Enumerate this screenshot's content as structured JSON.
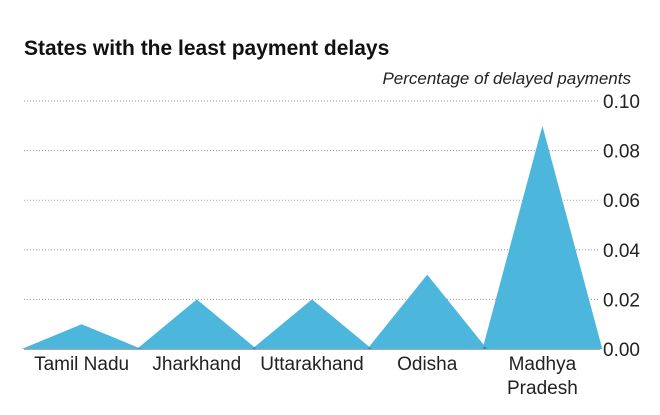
{
  "chart_data": {
    "type": "area",
    "title": "States with the least payment delays",
    "subtitle": "Percentage of delayed payments",
    "categories": [
      "Tamil Nadu",
      "Jharkhand",
      "Uttarakhand",
      "Odisha",
      "Madhya Pradesh"
    ],
    "category_lines": [
      [
        "Tamil Nadu"
      ],
      [
        "Jharkhand"
      ],
      [
        "Uttarakhand"
      ],
      [
        "Odisha"
      ],
      [
        "Madhya",
        "Pradesh"
      ]
    ],
    "values": [
      0.01,
      0.02,
      0.02,
      0.03,
      0.09
    ],
    "ylim": [
      0,
      0.1
    ],
    "yticks": [
      "0.00",
      "0.02",
      "0.04",
      "0.06",
      "0.08",
      "0.10"
    ],
    "ytick_values": [
      0,
      0.02,
      0.04,
      0.06,
      0.08,
      0.1
    ],
    "axis_side": "right",
    "grid": true,
    "color": "#4cb6dc",
    "overlap_color": "#1f93bd"
  }
}
